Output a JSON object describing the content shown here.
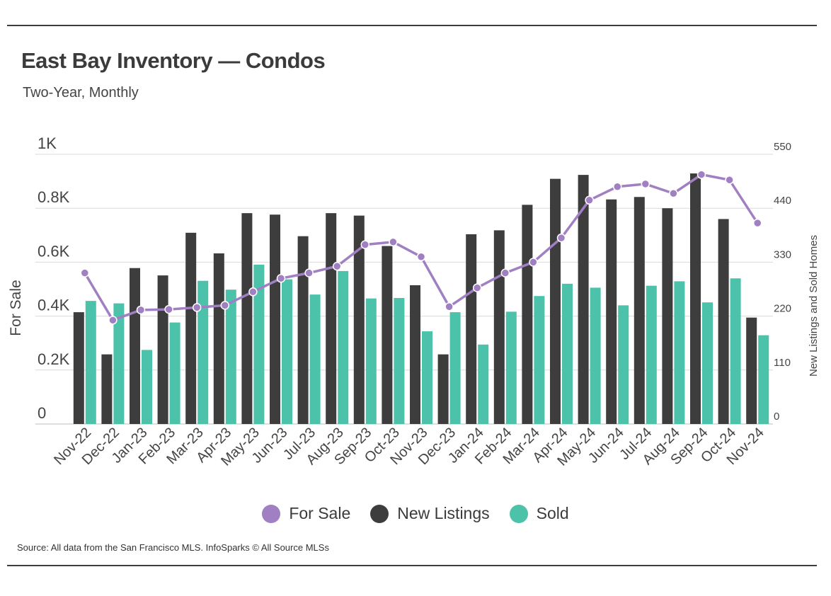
{
  "title": "East Bay Inventory — Condos",
  "subtitle": "Two-Year, Monthly",
  "source": "Source:  All data from the San Francisco MLS. InfoSparks © All Source MLSs",
  "colors": {
    "for_sale": "#a07fc3",
    "new_listings": "#3d3d3d",
    "sold": "#4cc2ab",
    "grid": "#d9d9d9",
    "axis_text": "#444444"
  },
  "chart_data": {
    "type": "bar",
    "title": "East Bay Inventory — Condos",
    "subtitle": "Two-Year, Monthly",
    "categories": [
      "Nov-22",
      "Dec-22",
      "Jan-23",
      "Feb-23",
      "Mar-23",
      "Apr-23",
      "May-23",
      "Jun-23",
      "Jul-23",
      "Aug-23",
      "Sep-23",
      "Oct-23",
      "Nov-23",
      "Dec-23",
      "Jan-24",
      "Feb-24",
      "Mar-24",
      "Apr-24",
      "May-24",
      "Jun-24",
      "Jul-24",
      "Aug-24",
      "Sep-24",
      "Oct-24",
      "Nov-24"
    ],
    "left_axis": {
      "label": "For Sale",
      "ylim": [
        0,
        1000
      ],
      "ticks": [
        0,
        200,
        400,
        600,
        800,
        1000
      ],
      "tick_labels": [
        "0",
        "0.2K",
        "0.4K",
        "0.6K",
        "0.8K",
        "1K"
      ]
    },
    "right_axis": {
      "label": "New Listings and Sold Homes",
      "ylim": [
        0,
        550
      ],
      "ticks": [
        0,
        110,
        220,
        330,
        440,
        550
      ],
      "tick_labels": [
        "0",
        "110",
        "220",
        "330",
        "440",
        "550"
      ]
    },
    "series": [
      {
        "name": "New Listings",
        "type": "bar",
        "axis": "right",
        "values": [
          228,
          142,
          318,
          303,
          390,
          348,
          430,
          427,
          383,
          430,
          425,
          363,
          283,
          142,
          387,
          395,
          447,
          500,
          508,
          458,
          463,
          440,
          511,
          418,
          217
        ]
      },
      {
        "name": "Sold",
        "type": "bar",
        "axis": "right",
        "values": [
          251,
          246,
          151,
          207,
          292,
          274,
          325,
          295,
          264,
          312,
          256,
          257,
          189,
          228,
          162,
          229,
          261,
          286,
          278,
          242,
          282,
          291,
          248,
          297,
          181
        ]
      },
      {
        "name": "For Sale",
        "type": "line",
        "axis": "left",
        "values": [
          560,
          385,
          423,
          425,
          432,
          440,
          490,
          540,
          560,
          585,
          665,
          675,
          620,
          435,
          505,
          560,
          600,
          690,
          830,
          880,
          890,
          855,
          925,
          905,
          745
        ]
      }
    ],
    "grid": true,
    "legend_position": "bottom"
  },
  "legend": [
    {
      "label": "For Sale",
      "color": "#a07fc3"
    },
    {
      "label": "New Listings",
      "color": "#3d3d3d"
    },
    {
      "label": "Sold",
      "color": "#4cc2ab"
    }
  ]
}
